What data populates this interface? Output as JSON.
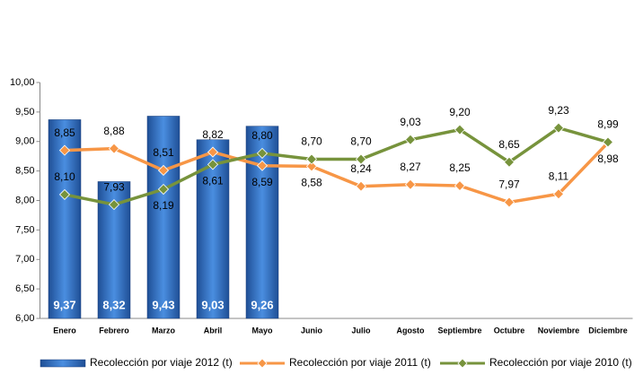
{
  "chart_data": {
    "type": "combo",
    "categories": [
      "Enero",
      "Febrero",
      "Marzo",
      "Abril",
      "Mayo",
      "Junio",
      "Julio",
      "Agosto",
      "Septiembre",
      "Octubre",
      "Noviembre",
      "Diciembre"
    ],
    "series": [
      {
        "name": "Recolección por viaje 2012 (t)",
        "type": "bar",
        "color": "#2e6fc6",
        "values": [
          9.37,
          8.32,
          9.43,
          9.03,
          9.26,
          null,
          null,
          null,
          null,
          null,
          null,
          null
        ],
        "value_labels": [
          "9,37",
          "8,32",
          "9,43",
          "9,03",
          "9,26",
          null,
          null,
          null,
          null,
          null,
          null,
          null
        ]
      },
      {
        "name": "Recolección por viaje 2011 (t)",
        "type": "line",
        "color": "#f79646",
        "values": [
          8.85,
          8.88,
          8.51,
          8.82,
          8.59,
          8.58,
          8.24,
          8.27,
          8.25,
          7.97,
          8.11,
          8.98
        ],
        "value_labels": [
          "8,85",
          "8,88",
          "8,51",
          "8,82",
          "8,59",
          "8,58",
          "8,24",
          "8,27",
          "8,25",
          "7,97",
          "8,11",
          "8,98"
        ]
      },
      {
        "name": "Recolección por viaje 2010 (t)",
        "type": "line",
        "color": "#77933c",
        "values": [
          8.1,
          7.93,
          8.19,
          8.61,
          8.8,
          8.7,
          8.7,
          9.03,
          9.2,
          8.65,
          9.23,
          8.99
        ],
        "value_labels": [
          "8,10",
          "7,93",
          "8,19",
          "8,61",
          "8,80",
          "8,70",
          "8,70",
          "9,03",
          "9,20",
          "8,65",
          "9,23",
          "8,99"
        ]
      }
    ],
    "ylim": [
      6,
      10
    ],
    "yticks": [
      {
        "value": 6,
        "label": "6,00"
      },
      {
        "value": 6.5,
        "label": "6,50"
      },
      {
        "value": 7,
        "label": "7,00"
      },
      {
        "value": 7.5,
        "label": "7,50"
      },
      {
        "value": 8,
        "label": "8,00"
      },
      {
        "value": 8.5,
        "label": "8,50"
      },
      {
        "value": 9,
        "label": "9,00"
      },
      {
        "value": 9.5,
        "label": "9,50"
      },
      {
        "value": 10,
        "label": "10,00"
      }
    ],
    "grid": false,
    "legend": "bottom"
  }
}
